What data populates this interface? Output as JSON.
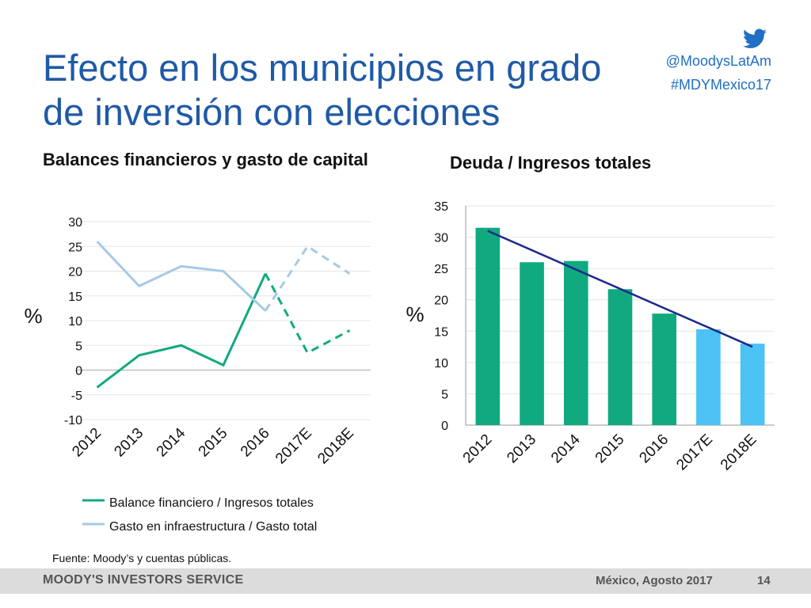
{
  "slide": {
    "title_line1": "Efecto en los municipios en grado",
    "title_line2": "de inversión con elecciones",
    "handle": "@MoodysLatAm",
    "hashtag": "#MDYMexico17",
    "source": "Fuente: Moody’s y cuentas públicas.",
    "footer_brand": "MOODY'S INVESTORS SERVICE",
    "footer_date": "México, Agosto 2017",
    "page_number": "14"
  },
  "colors": {
    "title": "#1f5aa6",
    "green": "#11aa80",
    "light_blue_line": "#a7c9e6",
    "light_blue_bar": "#4cc2f5",
    "trend": "#1b2a8a"
  },
  "chart_data": [
    {
      "type": "line",
      "title": "Balances financieros y gasto de capital",
      "ylabel": "%",
      "categories": [
        "2012",
        "2013",
        "2014",
        "2015",
        "2016",
        "2017E",
        "2018E"
      ],
      "ylim": [
        -10,
        30
      ],
      "yticks": [
        "30",
        "25",
        "20",
        "15",
        "10",
        "5",
        "0",
        "-5",
        "-10"
      ],
      "estimated_from_index": 4,
      "series": [
        {
          "name": "Balance financiero / Ingresos totales",
          "values": [
            -3.5,
            3,
            5,
            1,
            19.5,
            3.5,
            8
          ]
        },
        {
          "name": "Gasto en infraestructura / Gasto total",
          "values": [
            26,
            17,
            21,
            20,
            12,
            25,
            19.5
          ]
        }
      ]
    },
    {
      "type": "bar",
      "title": "Deuda / Ingresos totales",
      "ylabel": "%",
      "categories": [
        "2012",
        "2013",
        "2014",
        "2015",
        "2016",
        "2017E",
        "2018E"
      ],
      "values": [
        31.5,
        26,
        26.2,
        21.7,
        17.8,
        15.3,
        13
      ],
      "estimated": [
        false,
        false,
        false,
        false,
        false,
        true,
        true
      ],
      "ylim": [
        0,
        35
      ],
      "yticks": [
        "35",
        "30",
        "25",
        "20",
        "15",
        "10",
        "5",
        "0"
      ],
      "trendline": {
        "start": 31,
        "end": 12.5
      }
    }
  ]
}
